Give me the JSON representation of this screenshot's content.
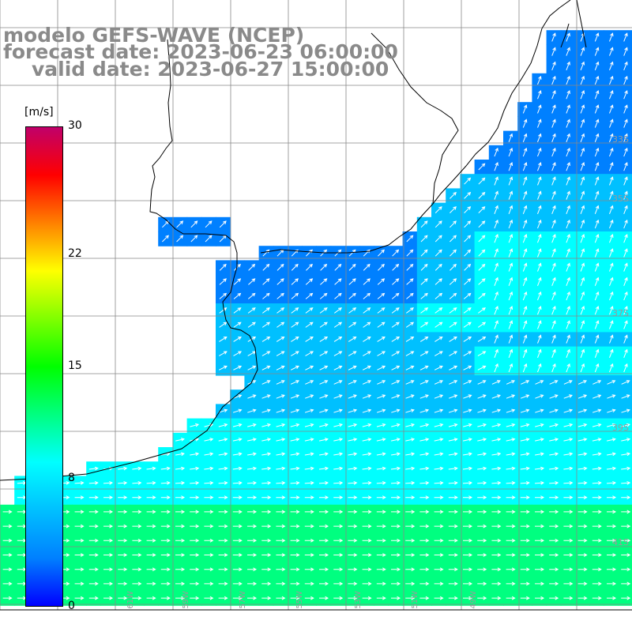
{
  "title": {
    "line1": "modelo GEFS-WAVE (NCEP)",
    "line2": "forecast date: 2023-06-23 06:00:00",
    "line3": "valid date: 2023-06-27 15:00:00"
  },
  "colorbar": {
    "unit": "[m/s]",
    "ticks": [
      {
        "label": "30",
        "value": 30
      },
      {
        "label": "22",
        "value": 22
      },
      {
        "label": "15",
        "value": 15
      },
      {
        "label": "8",
        "value": 8
      },
      {
        "label": "0",
        "value": 0
      }
    ],
    "colors": [
      "#0000ff",
      "#0080ff",
      "#00c0ff",
      "#00ffff",
      "#00ff80",
      "#00ff00",
      "#80ff00",
      "#ffff00",
      "#ff8000",
      "#ff0000",
      "#c0006a"
    ]
  },
  "lat_labels": [
    "33S",
    "35S",
    "37S",
    "39S",
    "41S"
  ],
  "lon_labels": [
    "61W",
    "59W",
    "57W",
    "55W",
    "53W",
    "51W",
    "49W"
  ],
  "colors": {
    "title": "#8a8a8a",
    "land": "#ffffff",
    "coast": "#000000",
    "grid": "#888888",
    "arrows": "#ffffff"
  }
}
